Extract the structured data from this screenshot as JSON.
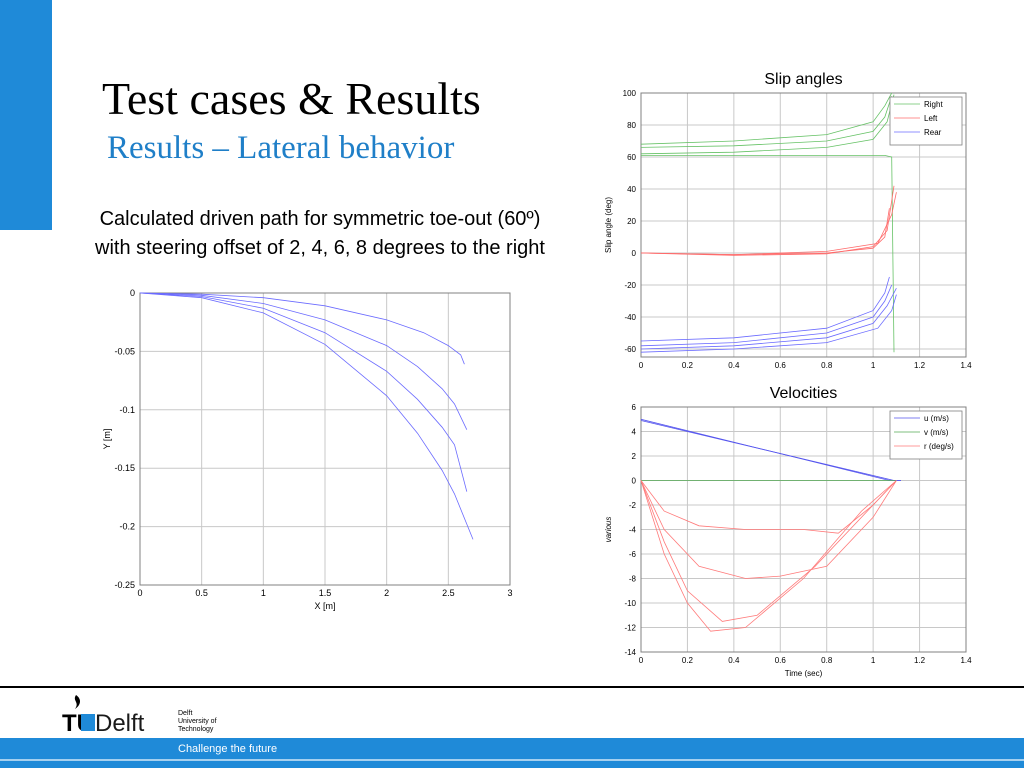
{
  "slide": {
    "title": "Test cases & Results",
    "subtitle": "Results – Lateral behavior",
    "caption_line1": "Calculated driven path for symmetric toe-out (60º)",
    "caption_line2": "with steering offset of 2, 4, 6, 8 degrees to the right"
  },
  "footer": {
    "logo_tu": "TU",
    "logo_delft": "Delft",
    "logo_sub": [
      "Delft",
      "University of",
      "Technology"
    ],
    "slogan": "Challenge the future"
  },
  "colors": {
    "accent": "#1f8ad8",
    "subtitle": "#1f7fc8"
  },
  "chart_data": [
    {
      "id": "path",
      "type": "line",
      "title": "",
      "xlabel": "X [m]",
      "ylabel": "Y [m]",
      "xlim": [
        0,
        3
      ],
      "ylim": [
        -0.25,
        0
      ],
      "y_reversed": true,
      "xticks": [
        0,
        0.5,
        1,
        1.5,
        2,
        2.5,
        3
      ],
      "yticks": [
        0,
        -0.05,
        -0.1,
        -0.15,
        -0.2,
        -0.25
      ],
      "grid": true,
      "series": [
        {
          "color": "#6b6bff",
          "points": [
            [
              0,
              0
            ],
            [
              0.5,
              -0.001
            ],
            [
              1,
              -0.004
            ],
            [
              1.5,
              -0.011
            ],
            [
              2,
              -0.023
            ],
            [
              2.3,
              -0.034
            ],
            [
              2.5,
              -0.045
            ],
            [
              2.6,
              -0.053
            ],
            [
              2.63,
              -0.061
            ]
          ]
        },
        {
          "color": "#6b6bff",
          "points": [
            [
              0,
              0
            ],
            [
              0.5,
              -0.002
            ],
            [
              1,
              -0.009
            ],
            [
              1.5,
              -0.023
            ],
            [
              2,
              -0.045
            ],
            [
              2.25,
              -0.063
            ],
            [
              2.45,
              -0.082
            ],
            [
              2.55,
              -0.095
            ],
            [
              2.65,
              -0.117
            ]
          ]
        },
        {
          "color": "#6b6bff",
          "points": [
            [
              0,
              0
            ],
            [
              0.5,
              -0.003
            ],
            [
              1,
              -0.013
            ],
            [
              1.5,
              -0.034
            ],
            [
              2,
              -0.067
            ],
            [
              2.25,
              -0.091
            ],
            [
              2.45,
              -0.115
            ],
            [
              2.55,
              -0.13
            ],
            [
              2.65,
              -0.17
            ]
          ]
        },
        {
          "color": "#6b6bff",
          "points": [
            [
              0,
              0
            ],
            [
              0.5,
              -0.004
            ],
            [
              1,
              -0.017
            ],
            [
              1.5,
              -0.044
            ],
            [
              2,
              -0.088
            ],
            [
              2.25,
              -0.12
            ],
            [
              2.45,
              -0.152
            ],
            [
              2.55,
              -0.172
            ],
            [
              2.7,
              -0.211
            ]
          ]
        }
      ]
    },
    {
      "id": "slip",
      "type": "line",
      "title": "Slip angles",
      "xlabel": "",
      "ylabel": "Slip angle (deg)",
      "xlim": [
        0,
        1.4
      ],
      "ylim": [
        -65,
        100
      ],
      "xticks": [
        0,
        0.2,
        0.4,
        0.6,
        0.8,
        1,
        1.2,
        1.4
      ],
      "yticks": [
        100,
        80,
        60,
        40,
        20,
        0,
        -20,
        -40,
        -60
      ],
      "grid": true,
      "legend": {
        "position": "top-right",
        "entries": [
          "Right",
          "Left",
          "Rear"
        ]
      },
      "series": [
        {
          "name": "Right",
          "color": "#66c266",
          "points": [
            [
              0,
              68
            ],
            [
              0.4,
              70
            ],
            [
              0.8,
              74
            ],
            [
              1.0,
              82
            ],
            [
              1.05,
              92
            ],
            [
              1.08,
              100
            ]
          ]
        },
        {
          "name": "Right",
          "color": "#66c266",
          "points": [
            [
              0,
              66
            ],
            [
              0.4,
              67
            ],
            [
              0.8,
              70
            ],
            [
              1.0,
              76
            ],
            [
              1.05,
              85
            ],
            [
              1.08,
              98
            ]
          ]
        },
        {
          "name": "Right",
          "color": "#66c266",
          "points": [
            [
              0,
              62
            ],
            [
              0.4,
              63
            ],
            [
              0.8,
              66
            ],
            [
              1.0,
              71
            ],
            [
              1.06,
              82
            ],
            [
              1.09,
              99
            ]
          ]
        },
        {
          "name": "Right",
          "color": "#66c266",
          "points": [
            [
              0,
              61
            ],
            [
              0.5,
              61
            ],
            [
              1.05,
              61
            ],
            [
              1.08,
              60
            ],
            [
              1.09,
              -62
            ]
          ]
        },
        {
          "name": "Left",
          "color": "#ff6b6b",
          "points": [
            [
              0,
              0
            ],
            [
              0.4,
              -1
            ],
            [
              0.8,
              0
            ],
            [
              1.0,
              3
            ],
            [
              1.05,
              10
            ],
            [
              1.07,
              28
            ]
          ]
        },
        {
          "name": "Left",
          "color": "#ff6b6b",
          "points": [
            [
              0,
              0
            ],
            [
              0.4,
              -1.5
            ],
            [
              0.8,
              -0.5
            ],
            [
              1.0,
              4
            ],
            [
              1.06,
              14
            ],
            [
              1.09,
              42
            ]
          ]
        },
        {
          "name": "Left",
          "color": "#ff6b6b",
          "points": [
            [
              0,
              0
            ],
            [
              0.4,
              -1
            ],
            [
              0.8,
              1
            ],
            [
              1.02,
              6
            ],
            [
              1.08,
              24
            ],
            [
              1.1,
              38
            ]
          ]
        },
        {
          "name": "Rear",
          "color": "#6b6bff",
          "points": [
            [
              0,
              -55
            ],
            [
              0.4,
              -53
            ],
            [
              0.8,
              -47
            ],
            [
              1.0,
              -36
            ],
            [
              1.05,
              -25
            ],
            [
              1.07,
              -15
            ]
          ]
        },
        {
          "name": "Rear",
          "color": "#6b6bff",
          "points": [
            [
              0,
              -58
            ],
            [
              0.4,
              -56
            ],
            [
              0.8,
              -50
            ],
            [
              1.0,
              -40
            ],
            [
              1.05,
              -30
            ],
            [
              1.08,
              -20
            ]
          ]
        },
        {
          "name": "Rear",
          "color": "#6b6bff",
          "points": [
            [
              0,
              -60
            ],
            [
              0.4,
              -58
            ],
            [
              0.8,
              -53
            ],
            [
              1.0,
              -44
            ],
            [
              1.06,
              -33
            ],
            [
              1.1,
              -22
            ]
          ]
        },
        {
          "name": "Rear",
          "color": "#6b6bff",
          "points": [
            [
              0,
              -62
            ],
            [
              0.4,
              -60
            ],
            [
              0.8,
              -56
            ],
            [
              1.02,
              -47
            ],
            [
              1.08,
              -36
            ],
            [
              1.1,
              -26
            ]
          ]
        }
      ]
    },
    {
      "id": "velocity",
      "type": "line",
      "title": "Velocities",
      "xlabel": "Time (sec)",
      "ylabel": "various",
      "xlim": [
        0,
        1.4
      ],
      "ylim": [
        -14,
        6
      ],
      "xticks": [
        0,
        0.2,
        0.4,
        0.6,
        0.8,
        1,
        1.2,
        1.4
      ],
      "yticks": [
        6,
        4,
        2,
        0,
        -2,
        -4,
        -6,
        -8,
        -10,
        -12,
        -14
      ],
      "grid": true,
      "legend": {
        "position": "top-right",
        "entries": [
          "u (m/s)",
          "v (m/s)",
          "r (deg/s)"
        ]
      },
      "series": [
        {
          "name": "u (m/s)",
          "color": "#5555ee",
          "points": [
            [
              0,
              5
            ],
            [
              1.07,
              0
            ],
            [
              1.12,
              0
            ]
          ]
        },
        {
          "name": "u (m/s)",
          "color": "#5555ee",
          "points": [
            [
              0,
              4.9
            ],
            [
              1.09,
              0
            ],
            [
              1.12,
              0
            ]
          ]
        },
        {
          "name": "v (m/s)",
          "color": "#55aa55",
          "points": [
            [
              0,
              0
            ],
            [
              1.1,
              0
            ]
          ]
        },
        {
          "name": "r (deg/s)",
          "color": "#ff7a7a",
          "points": [
            [
              0,
              0
            ],
            [
              0.1,
              -2.5
            ],
            [
              0.25,
              -3.7
            ],
            [
              0.45,
              -4
            ],
            [
              0.7,
              -4
            ],
            [
              0.85,
              -4.3
            ],
            [
              1.0,
              -2
            ],
            [
              1.1,
              0
            ]
          ]
        },
        {
          "name": "r (deg/s)",
          "color": "#ff7a7a",
          "points": [
            [
              0,
              0
            ],
            [
              0.1,
              -4
            ],
            [
              0.25,
              -7
            ],
            [
              0.45,
              -8
            ],
            [
              0.6,
              -7.8
            ],
            [
              0.8,
              -7
            ],
            [
              1.0,
              -3
            ],
            [
              1.1,
              0
            ]
          ]
        },
        {
          "name": "r (deg/s)",
          "color": "#ff7a7a",
          "points": [
            [
              0,
              0
            ],
            [
              0.1,
              -5
            ],
            [
              0.2,
              -9
            ],
            [
              0.35,
              -11.5
            ],
            [
              0.5,
              -11
            ],
            [
              0.75,
              -7
            ],
            [
              1.0,
              -2
            ],
            [
              1.1,
              0
            ]
          ]
        },
        {
          "name": "r (deg/s)",
          "color": "#ff7a7a",
          "points": [
            [
              0,
              0
            ],
            [
              0.1,
              -6
            ],
            [
              0.2,
              -10
            ],
            [
              0.3,
              -12.3
            ],
            [
              0.45,
              -12
            ],
            [
              0.7,
              -8
            ],
            [
              0.95,
              -2.5
            ],
            [
              1.1,
              0
            ]
          ]
        }
      ]
    }
  ]
}
